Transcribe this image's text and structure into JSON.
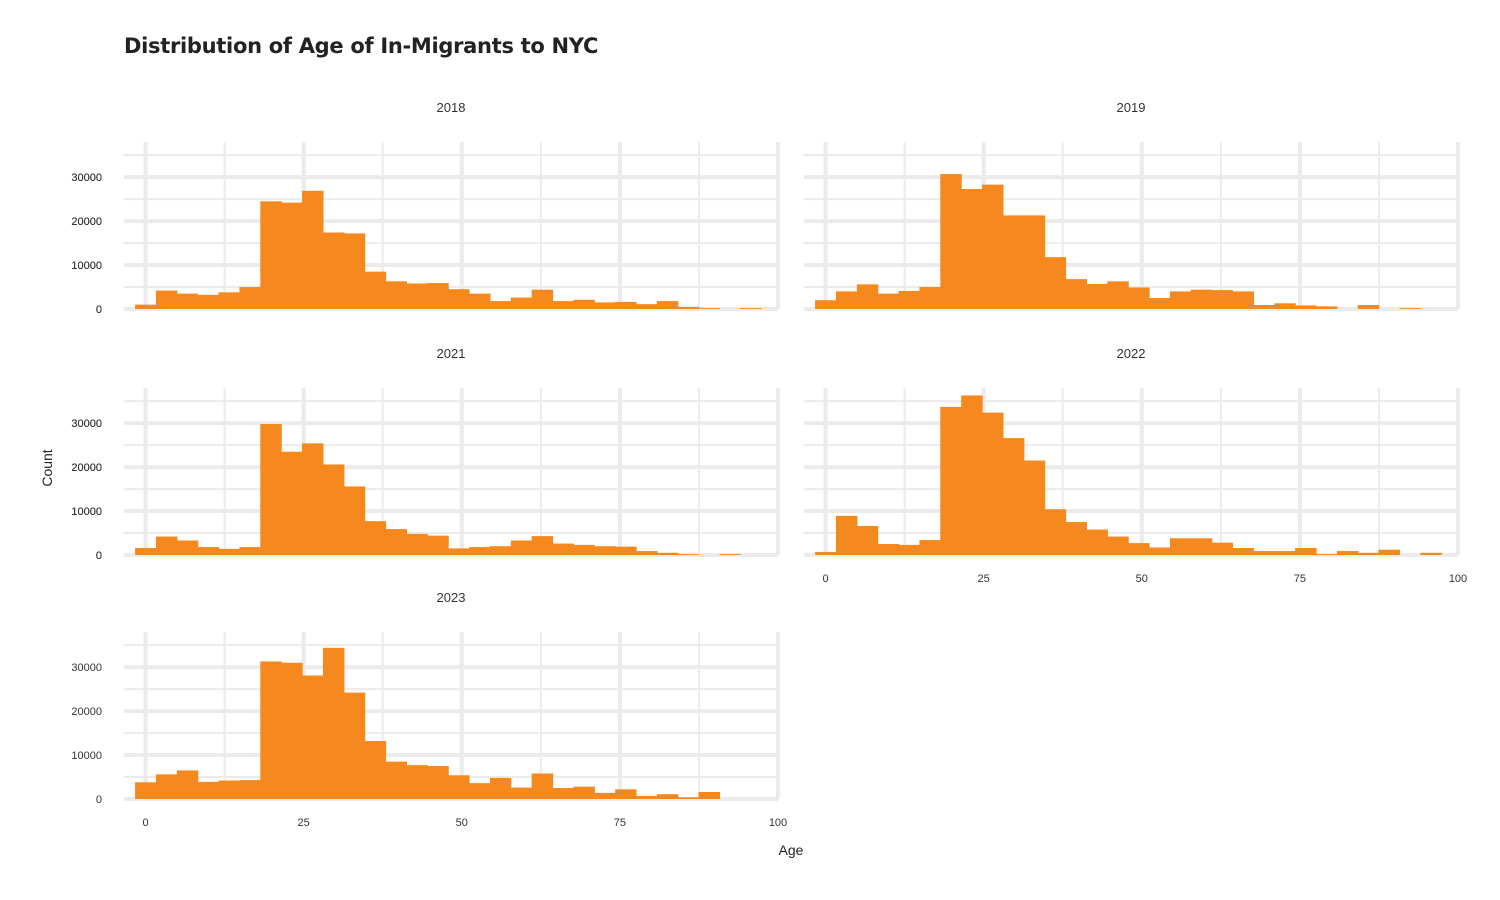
{
  "chart_data": {
    "type": "bar",
    "title": "Distribution of Age of In-Migrants to NYC",
    "xlabel": "Age",
    "ylabel": "Count",
    "xlim": [
      -3.4,
      100
    ],
    "ylim": [
      0,
      38000
    ],
    "x_ticks": [
      "0",
      "25",
      "50",
      "75",
      "100"
    ],
    "y_ticks": [
      "0",
      "10000",
      "20000",
      "30000"
    ],
    "bin_width": 3.3,
    "bin_start": -1.65,
    "grid": true,
    "bar_color": "#f5891e",
    "grid_color": "#ebebeb",
    "panels": [
      {
        "name": "2018",
        "values": [
          1000,
          4200,
          3500,
          3200,
          3800,
          5000,
          24500,
          24200,
          26900,
          17400,
          17200,
          8500,
          6300,
          5800,
          5900,
          4500,
          3500,
          1800,
          2600,
          4400,
          1800,
          2100,
          1500,
          1600,
          1100,
          1800,
          500,
          200,
          0,
          200
        ]
      },
      {
        "name": "2019",
        "values": [
          2000,
          4000,
          5600,
          3500,
          4100,
          5000,
          30700,
          27300,
          28300,
          21300,
          21300,
          11800,
          6800,
          5700,
          6300,
          4900,
          2500,
          4000,
          4400,
          4300,
          4000,
          900,
          1300,
          800,
          600,
          0,
          900,
          0,
          200,
          0
        ]
      },
      {
        "name": "2021",
        "values": [
          1600,
          4200,
          3300,
          1800,
          1400,
          1800,
          29800,
          23500,
          25400,
          20600,
          15600,
          7700,
          5900,
          4800,
          4400,
          1500,
          1800,
          2000,
          3300,
          4300,
          2600,
          2300,
          2000,
          1900,
          900,
          500,
          200,
          0,
          200,
          0
        ]
      },
      {
        "name": "2022",
        "values": [
          700,
          8900,
          6600,
          2500,
          2300,
          3400,
          33700,
          36300,
          32400,
          26600,
          21500,
          10400,
          7500,
          5800,
          4200,
          2700,
          1700,
          3800,
          3800,
          2800,
          1600,
          900,
          900,
          1600,
          200,
          900,
          500,
          1200,
          0,
          500
        ]
      },
      {
        "name": "2023",
        "values": [
          3800,
          5600,
          6500,
          3900,
          4200,
          4300,
          31300,
          31000,
          28100,
          34400,
          24200,
          13200,
          8500,
          7700,
          7500,
          5400,
          3600,
          4800,
          2600,
          5800,
          2500,
          2800,
          1400,
          2200,
          700,
          1100,
          400,
          1600,
          0,
          0
        ]
      }
    ]
  }
}
